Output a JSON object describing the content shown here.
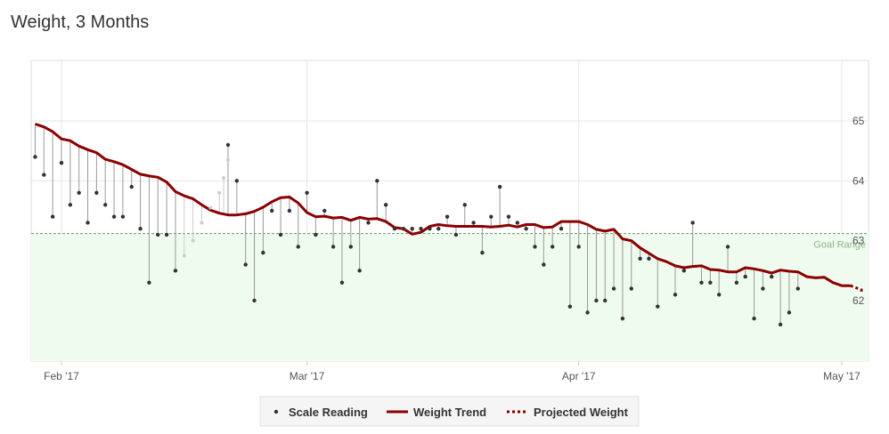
{
  "title": "Weight, 3 Months",
  "chart_data": {
    "type": "line",
    "title": "Weight, 3 Months",
    "x_ticks": [
      {
        "label": "Feb '17",
        "date": "2017-02-01"
      },
      {
        "label": "Mar '17",
        "date": "2017-03-01"
      },
      {
        "label": "Apr '17",
        "date": "2017-04-01"
      },
      {
        "label": "May '17",
        "date": "2017-05-01"
      }
    ],
    "xlim": [
      "2017-01-29",
      "2017-05-03"
    ],
    "ylim": [
      61.0,
      66.0
    ],
    "y_ticks": [
      62,
      63,
      64,
      65
    ],
    "goal": {
      "label": "Goal Range",
      "upper": 63.12,
      "color": "#f0fbf0",
      "line_color": "#6a9a5a"
    },
    "grid": true,
    "legend": {
      "position": "bottom-center",
      "entries": [
        {
          "name": "Scale Reading",
          "style": "dot"
        },
        {
          "name": "Weight Trend",
          "style": "solid"
        },
        {
          "name": "Projected Weight",
          "style": "dotted"
        }
      ]
    },
    "colors": {
      "trend": "#8b0000",
      "scale": "#333333",
      "faded": "#cccccc",
      "stem": "#999999"
    },
    "series": [
      {
        "name": "Weight Trend",
        "points": [
          [
            "2017-01-29",
            64.95
          ],
          [
            "2017-01-30",
            64.9
          ],
          [
            "2017-01-31",
            64.82
          ],
          [
            "2017-02-01",
            64.7
          ],
          [
            "2017-02-02",
            64.67
          ],
          [
            "2017-02-03",
            64.58
          ],
          [
            "2017-02-04",
            64.52
          ],
          [
            "2017-02-05",
            64.47
          ],
          [
            "2017-02-06",
            64.36
          ],
          [
            "2017-02-07",
            64.32
          ],
          [
            "2017-02-08",
            64.27
          ],
          [
            "2017-02-09",
            64.19
          ],
          [
            "2017-02-10",
            64.11
          ],
          [
            "2017-02-11",
            64.08
          ],
          [
            "2017-02-12",
            64.06
          ],
          [
            "2017-02-13",
            63.98
          ],
          [
            "2017-02-14",
            63.82
          ],
          [
            "2017-02-15",
            63.75
          ],
          [
            "2017-02-16",
            63.7
          ],
          [
            "2017-02-17",
            63.6
          ],
          [
            "2017-02-18",
            63.51
          ],
          [
            "2017-02-19",
            63.46
          ],
          [
            "2017-02-20",
            63.43
          ],
          [
            "2017-02-21",
            63.43
          ],
          [
            "2017-02-22",
            63.45
          ],
          [
            "2017-02-23",
            63.49
          ],
          [
            "2017-02-24",
            63.56
          ],
          [
            "2017-02-25",
            63.65
          ],
          [
            "2017-02-26",
            63.72
          ],
          [
            "2017-02-27",
            63.73
          ],
          [
            "2017-02-28",
            63.63
          ],
          [
            "2017-03-01",
            63.47
          ],
          [
            "2017-03-02",
            63.4
          ],
          [
            "2017-03-03",
            63.41
          ],
          [
            "2017-03-04",
            63.38
          ],
          [
            "2017-03-05",
            63.39
          ],
          [
            "2017-03-06",
            63.34
          ],
          [
            "2017-03-07",
            63.39
          ],
          [
            "2017-03-08",
            63.36
          ],
          [
            "2017-03-09",
            63.37
          ],
          [
            "2017-03-10",
            63.32
          ],
          [
            "2017-03-11",
            63.22
          ],
          [
            "2017-03-12",
            63.2
          ],
          [
            "2017-03-13",
            63.11
          ],
          [
            "2017-03-14",
            63.14
          ],
          [
            "2017-03-15",
            63.24
          ],
          [
            "2017-03-16",
            63.27
          ],
          [
            "2017-03-17",
            63.25
          ],
          [
            "2017-03-18",
            63.24
          ],
          [
            "2017-03-19",
            63.24
          ],
          [
            "2017-03-20",
            63.24
          ],
          [
            "2017-03-21",
            63.24
          ],
          [
            "2017-03-22",
            63.23
          ],
          [
            "2017-03-23",
            63.24
          ],
          [
            "2017-03-24",
            63.26
          ],
          [
            "2017-03-25",
            63.23
          ],
          [
            "2017-03-26",
            63.27
          ],
          [
            "2017-03-27",
            63.27
          ],
          [
            "2017-03-28",
            63.22
          ],
          [
            "2017-03-29",
            63.23
          ],
          [
            "2017-03-30",
            63.32
          ],
          [
            "2017-03-31",
            63.32
          ],
          [
            "2017-04-01",
            63.32
          ],
          [
            "2017-04-02",
            63.27
          ],
          [
            "2017-04-03",
            63.19
          ],
          [
            "2017-04-04",
            63.16
          ],
          [
            "2017-04-05",
            63.19
          ],
          [
            "2017-04-06",
            63.03
          ],
          [
            "2017-04-07",
            63.0
          ],
          [
            "2017-04-08",
            62.88
          ],
          [
            "2017-04-09",
            62.79
          ],
          [
            "2017-04-10",
            62.7
          ],
          [
            "2017-04-11",
            62.65
          ],
          [
            "2017-04-12",
            62.58
          ],
          [
            "2017-04-13",
            62.55
          ],
          [
            "2017-04-14",
            62.57
          ],
          [
            "2017-04-15",
            62.58
          ],
          [
            "2017-04-16",
            62.52
          ],
          [
            "2017-04-17",
            62.51
          ],
          [
            "2017-04-18",
            62.48
          ],
          [
            "2017-04-19",
            62.48
          ],
          [
            "2017-04-20",
            62.55
          ],
          [
            "2017-04-21",
            62.53
          ],
          [
            "2017-04-22",
            62.5
          ],
          [
            "2017-04-23",
            62.46
          ],
          [
            "2017-04-24",
            62.51
          ],
          [
            "2017-04-25",
            62.49
          ],
          [
            "2017-04-26",
            62.48
          ],
          [
            "2017-04-27",
            62.4
          ],
          [
            "2017-04-28",
            62.38
          ],
          [
            "2017-04-29",
            62.39
          ],
          [
            "2017-04-30",
            62.3
          ],
          [
            "2017-05-01",
            62.25
          ],
          [
            "2017-05-02",
            62.25
          ]
        ]
      },
      {
        "name": "Projected Weight",
        "points": [
          [
            "2017-05-02",
            62.25
          ],
          [
            "2017-05-05",
            62.18
          ],
          [
            "2017-05-08",
            62.12
          ]
        ]
      },
      {
        "name": "Scale Reading",
        "points": [
          [
            "2017-01-29",
            64.4
          ],
          [
            "2017-01-30",
            64.1
          ],
          [
            "2017-01-31",
            63.4
          ],
          [
            "2017-02-01",
            64.3
          ],
          [
            "2017-02-02",
            63.6
          ],
          [
            "2017-02-03",
            63.8
          ],
          [
            "2017-02-04",
            63.3
          ],
          [
            "2017-02-05",
            63.8
          ],
          [
            "2017-02-06",
            63.6
          ],
          [
            "2017-02-07",
            63.4
          ],
          [
            "2017-02-08",
            63.4
          ],
          [
            "2017-02-09",
            63.9
          ],
          [
            "2017-02-10",
            63.2
          ],
          [
            "2017-02-11",
            62.3
          ],
          [
            "2017-02-12",
            63.1
          ],
          [
            "2017-02-13",
            63.1
          ],
          [
            "2017-02-14",
            62.5
          ],
          [
            "2017-02-20",
            64.6
          ],
          [
            "2017-02-21",
            64.0
          ],
          [
            "2017-02-22",
            62.6
          ],
          [
            "2017-02-23",
            62.0
          ],
          [
            "2017-02-24",
            62.8
          ],
          [
            "2017-02-25",
            63.5
          ],
          [
            "2017-02-26",
            63.1
          ],
          [
            "2017-02-27",
            63.5
          ],
          [
            "2017-02-28",
            62.9
          ],
          [
            "2017-03-01",
            63.8
          ],
          [
            "2017-03-02",
            63.1
          ],
          [
            "2017-03-03",
            63.5
          ],
          [
            "2017-03-04",
            62.9
          ],
          [
            "2017-03-05",
            62.3
          ],
          [
            "2017-03-06",
            62.9
          ],
          [
            "2017-03-07",
            62.5
          ],
          [
            "2017-03-08",
            63.3
          ],
          [
            "2017-03-09",
            64.0
          ],
          [
            "2017-03-10",
            63.6
          ],
          [
            "2017-03-11",
            63.2
          ],
          [
            "2017-03-12",
            63.2
          ],
          [
            "2017-03-13",
            63.2
          ],
          [
            "2017-03-14",
            63.2
          ],
          [
            "2017-03-15",
            63.2
          ],
          [
            "2017-03-16",
            63.2
          ],
          [
            "2017-03-17",
            63.4
          ],
          [
            "2017-03-18",
            63.1
          ],
          [
            "2017-03-19",
            63.6
          ],
          [
            "2017-03-20",
            63.3
          ],
          [
            "2017-03-21",
            62.8
          ],
          [
            "2017-03-22",
            63.4
          ],
          [
            "2017-03-23",
            63.9
          ],
          [
            "2017-03-24",
            63.4
          ],
          [
            "2017-03-25",
            63.3
          ],
          [
            "2017-03-26",
            63.2
          ],
          [
            "2017-03-27",
            62.9
          ],
          [
            "2017-03-28",
            62.6
          ],
          [
            "2017-03-29",
            62.9
          ],
          [
            "2017-03-30",
            63.2
          ],
          [
            "2017-03-31",
            61.9
          ],
          [
            "2017-04-01",
            62.9
          ],
          [
            "2017-04-02",
            61.8
          ],
          [
            "2017-04-03",
            62.0
          ],
          [
            "2017-04-04",
            62.0
          ],
          [
            "2017-04-05",
            62.2
          ],
          [
            "2017-04-06",
            61.7
          ],
          [
            "2017-04-07",
            62.2
          ],
          [
            "2017-04-08",
            62.7
          ],
          [
            "2017-04-09",
            62.7
          ],
          [
            "2017-04-10",
            61.9
          ],
          [
            "2017-04-12",
            62.1
          ],
          [
            "2017-04-13",
            62.5
          ],
          [
            "2017-04-14",
            63.3
          ],
          [
            "2017-04-15",
            62.3
          ],
          [
            "2017-04-16",
            62.3
          ],
          [
            "2017-04-17",
            62.1
          ],
          [
            "2017-04-18",
            62.9
          ],
          [
            "2017-04-19",
            62.3
          ],
          [
            "2017-04-20",
            62.4
          ],
          [
            "2017-04-21",
            61.7
          ],
          [
            "2017-04-22",
            62.2
          ],
          [
            "2017-04-23",
            62.4
          ],
          [
            "2017-04-24",
            61.6
          ],
          [
            "2017-04-25",
            61.8
          ],
          [
            "2017-04-26",
            62.2
          ]
        ]
      },
      {
        "name": "Scale Reading (faded)",
        "points": [
          [
            "2017-02-15",
            62.75
          ],
          [
            "2017-02-16",
            63.0
          ],
          [
            "2017-02-17",
            63.3
          ],
          [
            "2017-02-18",
            63.55
          ],
          [
            "2017-02-19",
            63.8
          ],
          [
            "2017-02-19b",
            64.05
          ],
          [
            "2017-02-19c",
            64.35
          ]
        ]
      }
    ]
  }
}
